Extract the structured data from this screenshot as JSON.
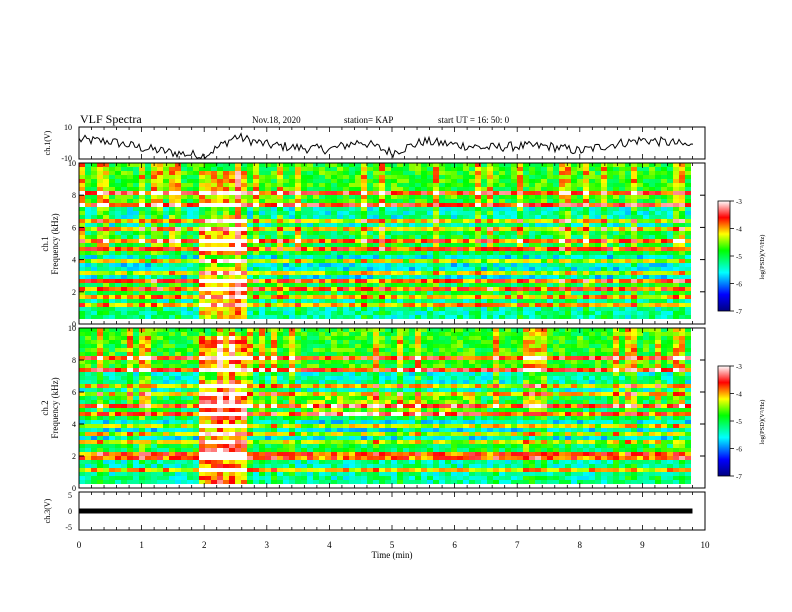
{
  "header": {
    "title": "VLF Spectra",
    "date": "Nov.18, 2020",
    "station": "station= KAP",
    "start": "start  UT =   16: 50: 0"
  },
  "colorbar": {
    "label": "log(PSD)(V²/Hz)",
    "ticks": [
      "-3",
      "-4",
      "-5",
      "-6",
      "-7"
    ]
  },
  "chart_data": [
    {
      "type": "line",
      "panel": "ch1-waveform",
      "ylabel": "ch.1(V)",
      "ylim": [
        -10,
        10
      ],
      "yticks": [
        "10",
        "-10"
      ],
      "xlim": [
        0,
        10
      ],
      "x": [
        0,
        0.5,
        1,
        1.5,
        2,
        2.5,
        3,
        3.5,
        4,
        4.5,
        5,
        5.5,
        6,
        6.5,
        7,
        7.5,
        8,
        8.5,
        9,
        9.5,
        9.8
      ],
      "y": [
        2,
        1,
        -3,
        -6,
        -8,
        4,
        -1,
        -3,
        -4,
        1,
        -6,
        1,
        -1,
        -3,
        -2,
        -2,
        -5,
        -1,
        2,
        0,
        -2
      ]
    },
    {
      "type": "heatmap",
      "panel": "ch1-spectrogram",
      "ylabel": "ch.1",
      "ylabel2": "Frequency (kHz)",
      "ylim": [
        0,
        10
      ],
      "yticks": [
        "10",
        "8",
        "6",
        "4",
        "2",
        "0"
      ],
      "xlim": [
        0,
        9.83
      ],
      "colorscale_range": [
        -7,
        -3
      ],
      "notes": "broadband noise, intensified band 1.9-2.6 min; horizontal narrowband lines"
    },
    {
      "type": "heatmap",
      "panel": "ch2-spectrogram",
      "ylabel": "ch.2",
      "ylabel2": "Frequency (kHz)",
      "ylim": [
        0,
        10
      ],
      "yticks": [
        "10",
        "8",
        "6",
        "4",
        "2",
        "0"
      ],
      "xlim": [
        0,
        9.83
      ],
      "colorscale_range": [
        -7,
        -3
      ]
    },
    {
      "type": "line",
      "panel": "ch3-waveform",
      "ylabel": "ch.3(V)",
      "ylim": [
        -5,
        5
      ],
      "yticks": [
        "5",
        "0",
        "-5"
      ],
      "xlim": [
        0,
        10
      ],
      "xlabel": "Time  (min)",
      "xticks": [
        "0",
        "1",
        "2",
        "3",
        "4",
        "5",
        "6",
        "7",
        "8",
        "9",
        "10"
      ],
      "x": [
        0,
        9.8
      ],
      "y": [
        0,
        0
      ]
    }
  ]
}
